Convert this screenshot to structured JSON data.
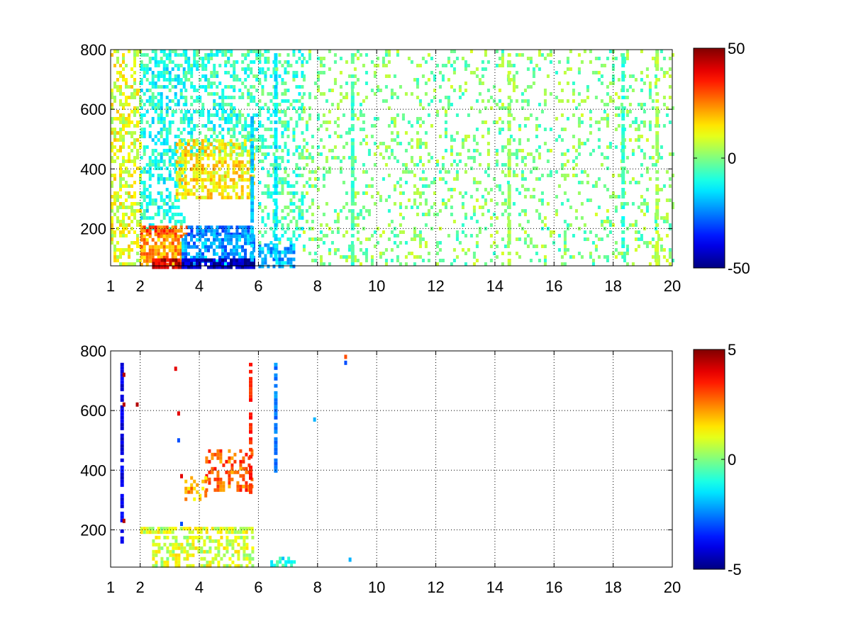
{
  "chart_data": [
    {
      "type": "heatmap",
      "title": "",
      "xlabel": "",
      "ylabel": "",
      "xlim": [
        1,
        20
      ],
      "ylim": [
        75,
        800
      ],
      "x_ticks": [
        1,
        2,
        4,
        6,
        8,
        10,
        12,
        14,
        16,
        18,
        20
      ],
      "y_ticks": [
        200,
        400,
        600,
        800
      ],
      "grid": true,
      "grid_style": "dotted",
      "colormap": "jet",
      "color_range": [
        -50,
        50
      ],
      "colorbar_ticks": [
        -50,
        0,
        50
      ],
      "colorbar_placement": "right",
      "regions": [
        {
          "x": [
            1.0,
            2.0
          ],
          "y": [
            75,
            800
          ],
          "value": 10,
          "density": 0.45
        },
        {
          "x": [
            2.0,
            3.5
          ],
          "y": [
            200,
            800
          ],
          "value": -10,
          "density": 0.5
        },
        {
          "x": [
            3.5,
            6.0
          ],
          "y": [
            450,
            800
          ],
          "value": -8,
          "density": 0.45
        },
        {
          "x": [
            3.2,
            5.8
          ],
          "y": [
            300,
            500
          ],
          "value": 14,
          "density": 0.6
        },
        {
          "x": [
            2.0,
            3.6
          ],
          "y": [
            180,
            210
          ],
          "value": 28,
          "density": 0.8
        },
        {
          "x": [
            3.6,
            5.8
          ],
          "y": [
            180,
            210
          ],
          "value": -25,
          "density": 0.8
        },
        {
          "x": [
            2.0,
            3.4
          ],
          "y": [
            75,
            180
          ],
          "value": 22,
          "density": 0.7
        },
        {
          "x": [
            3.4,
            5.8
          ],
          "y": [
            75,
            180
          ],
          "value": -22,
          "density": 0.7
        },
        {
          "x": [
            2.4,
            3.4
          ],
          "y": [
            75,
            100
          ],
          "value": 42,
          "density": 0.9
        },
        {
          "x": [
            3.4,
            5.8
          ],
          "y": [
            75,
            100
          ],
          "value": -45,
          "density": 0.9
        },
        {
          "x": [
            6.0,
            7.2
          ],
          "y": [
            75,
            150
          ],
          "value": -20,
          "density": 0.6
        },
        {
          "x": [
            6.0,
            7.5
          ],
          "y": [
            150,
            800
          ],
          "value": -6,
          "density": 0.35
        },
        {
          "x": [
            7.5,
            20.0
          ],
          "y": [
            75,
            800
          ],
          "value": 0,
          "density": 0.18
        }
      ],
      "stripes": [
        {
          "x": 5.8,
          "y": [
            75,
            600
          ],
          "value": -18
        },
        {
          "x": 6.6,
          "y": [
            75,
            800
          ],
          "value": -15
        },
        {
          "x": 9.2,
          "y": [
            75,
            800
          ],
          "value": -6
        },
        {
          "x": 14.5,
          "y": [
            75,
            800
          ],
          "value": 4
        },
        {
          "x": 18.35,
          "y": [
            75,
            800
          ],
          "value": -8
        },
        {
          "x": 19.5,
          "y": [
            75,
            800
          ],
          "value": 5
        }
      ]
    },
    {
      "type": "heatmap",
      "title": "",
      "xlabel": "",
      "ylabel": "",
      "xlim": [
        1,
        20
      ],
      "ylim": [
        75,
        800
      ],
      "x_ticks": [
        1,
        2,
        4,
        6,
        8,
        10,
        12,
        14,
        16,
        18,
        20
      ],
      "y_ticks": [
        200,
        400,
        600,
        800
      ],
      "grid": true,
      "grid_style": "dotted",
      "colormap": "jet",
      "color_range": [
        -5,
        5
      ],
      "colorbar_ticks": [
        -5,
        0,
        5
      ],
      "colorbar_placement": "right",
      "regions": [
        {
          "x": [
            2.4,
            5.8
          ],
          "y": [
            75,
            180
          ],
          "value": 0.8,
          "density": 0.55
        },
        {
          "x": [
            2.0,
            5.8
          ],
          "y": [
            190,
            210
          ],
          "value": 0.8,
          "density": 0.8
        },
        {
          "x": [
            4.2,
            5.8
          ],
          "y": [
            330,
            470
          ],
          "value": 2.8,
          "density": 0.45
        },
        {
          "x": [
            3.5,
            4.3
          ],
          "y": [
            300,
            380
          ],
          "value": 2.0,
          "density": 0.35
        },
        {
          "x": [
            6.4,
            7.2
          ],
          "y": [
            75,
            110
          ],
          "value": -1.0,
          "density": 0.5
        }
      ],
      "stripes": [
        {
          "x": 1.4,
          "y": [
            160,
            760
          ],
          "value": -4
        },
        {
          "x": 5.75,
          "y": [
            330,
            760
          ],
          "value": 3.5
        },
        {
          "x": 6.6,
          "y": [
            400,
            760
          ],
          "value": -2.5
        }
      ],
      "points": [
        {
          "x": 1.45,
          "y": 720,
          "value": 4.5
        },
        {
          "x": 1.45,
          "y": 620,
          "value": 4.5
        },
        {
          "x": 1.45,
          "y": 230,
          "value": 4.5
        },
        {
          "x": 3.2,
          "y": 740,
          "value": 4.0
        },
        {
          "x": 3.3,
          "y": 590,
          "value": 4.0
        },
        {
          "x": 3.3,
          "y": 500,
          "value": -3.0
        },
        {
          "x": 3.4,
          "y": 380,
          "value": 4.0
        },
        {
          "x": 3.4,
          "y": 220,
          "value": -3.0
        },
        {
          "x": 1.9,
          "y": 620,
          "value": 4.5
        },
        {
          "x": 7.9,
          "y": 570,
          "value": -2.0
        },
        {
          "x": 8.95,
          "y": 780,
          "value": 3.0
        },
        {
          "x": 8.95,
          "y": 760,
          "value": -3.0
        },
        {
          "x": 9.1,
          "y": 100,
          "value": -2.0
        }
      ]
    }
  ]
}
